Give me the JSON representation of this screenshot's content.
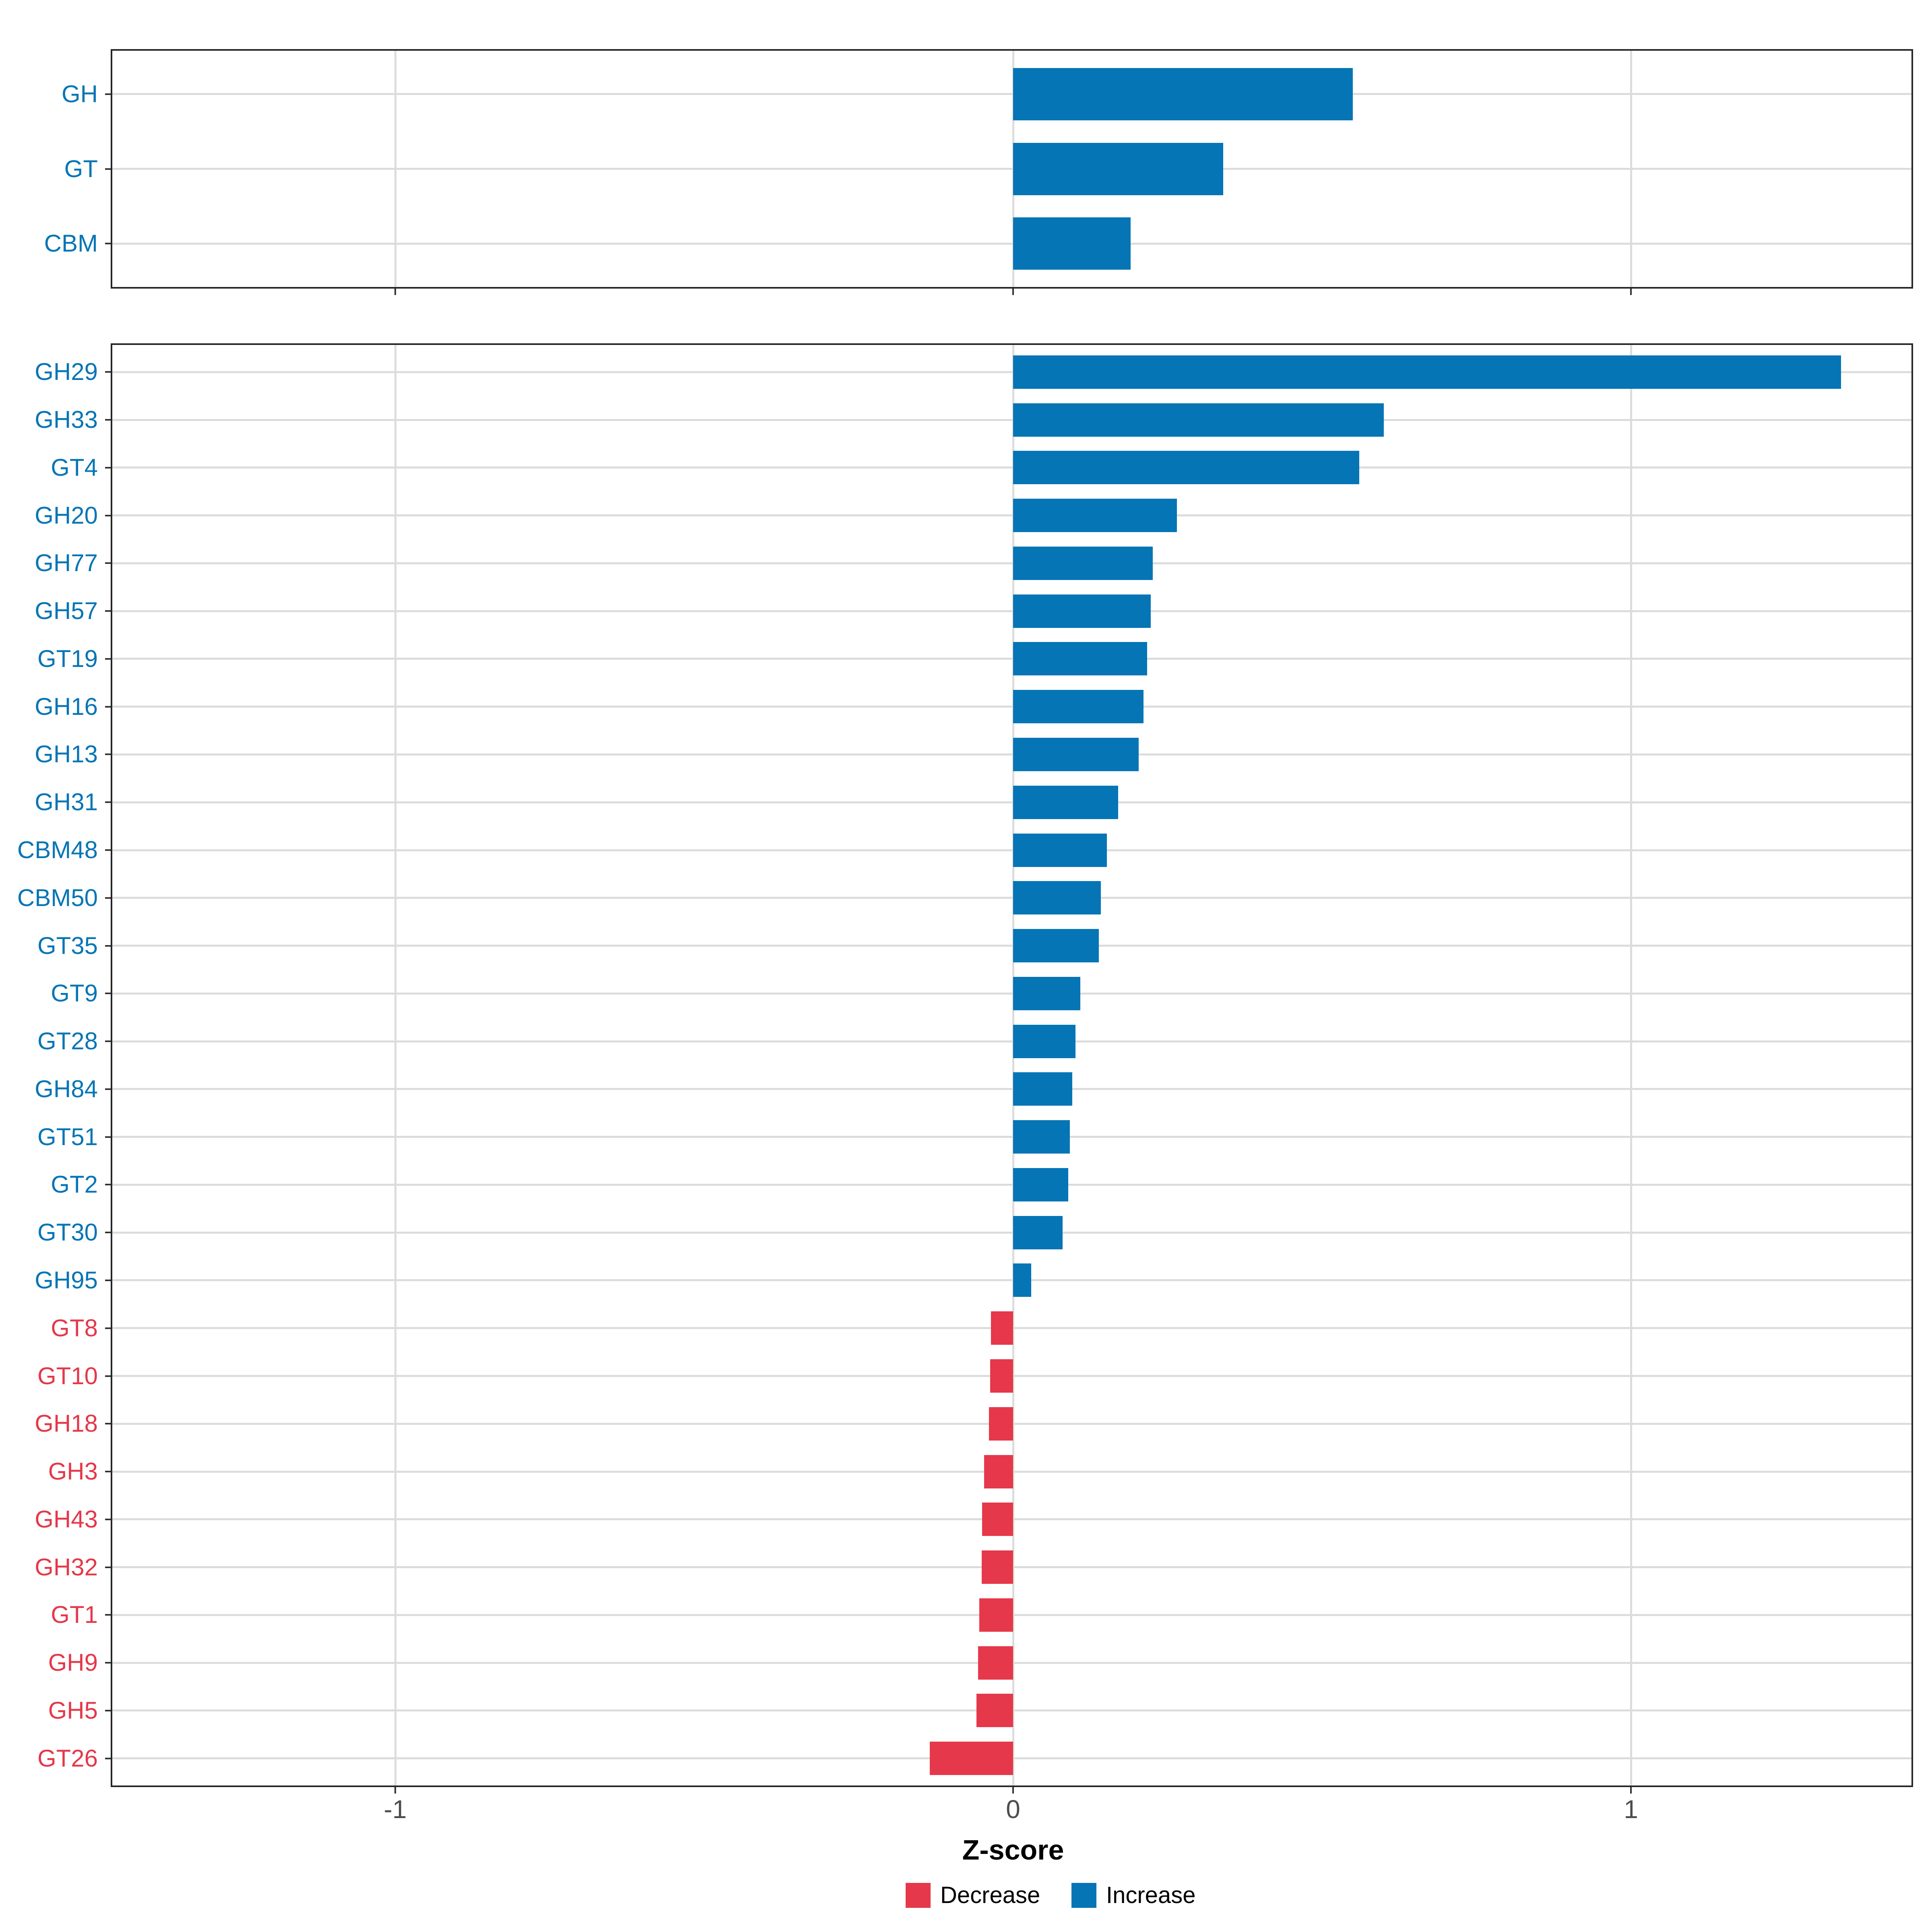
{
  "chart_data": {
    "type": "bar",
    "orientation": "horizontal",
    "xlabel": "Z-score",
    "x_ticks": [
      -1,
      0,
      1
    ],
    "x_tick_labels": [
      "-1",
      "0",
      "1"
    ],
    "xlim": [
      -1.46,
      1.46
    ],
    "grid": "on",
    "legend_position": "bottom",
    "colors": {
      "increase": "#0575B5",
      "decrease": "#E5384A",
      "gridline": "#DCDCDC",
      "panel_border": "#262626",
      "tick": "#333333",
      "tick_label": "#4D4D4D"
    },
    "legend": [
      {
        "label": "Decrease",
        "color": "#E5384A"
      },
      {
        "label": "Increase",
        "color": "#0575B5"
      }
    ],
    "panels": [
      {
        "name": "cazyme-classes",
        "categories": [
          "GH",
          "GT",
          "CBM"
        ],
        "values": [
          0.55,
          0.34,
          0.19
        ],
        "directions": [
          "increase",
          "increase",
          "increase"
        ]
      },
      {
        "name": "cazyme-families",
        "categories": [
          "GH29",
          "GH33",
          "GT4",
          "GH20",
          "GH77",
          "GH57",
          "GT19",
          "GH16",
          "GH13",
          "GH31",
          "CBM48",
          "CBM50",
          "GT35",
          "GT9",
          "GT28",
          "GH84",
          "GT51",
          "GT2",
          "GT30",
          "GH95",
          "GT8",
          "GT10",
          "GH18",
          "GH3",
          "GH43",
          "GH32",
          "GT1",
          "GH9",
          "GH5",
          "GT26"
        ],
        "values": [
          1.34,
          0.6,
          0.56,
          0.265,
          0.226,
          0.223,
          0.217,
          0.211,
          0.203,
          0.17,
          0.152,
          0.142,
          0.139,
          0.109,
          0.101,
          0.096,
          0.092,
          0.089,
          0.08,
          0.029,
          -0.036,
          -0.037,
          -0.039,
          -0.047,
          -0.05,
          -0.051,
          -0.055,
          -0.057,
          -0.059,
          -0.135
        ],
        "directions": [
          "increase",
          "increase",
          "increase",
          "increase",
          "increase",
          "increase",
          "increase",
          "increase",
          "increase",
          "increase",
          "increase",
          "increase",
          "increase",
          "increase",
          "increase",
          "increase",
          "increase",
          "increase",
          "increase",
          "increase",
          "decrease",
          "decrease",
          "decrease",
          "decrease",
          "decrease",
          "decrease",
          "decrease",
          "decrease",
          "decrease",
          "decrease"
        ]
      }
    ]
  }
}
